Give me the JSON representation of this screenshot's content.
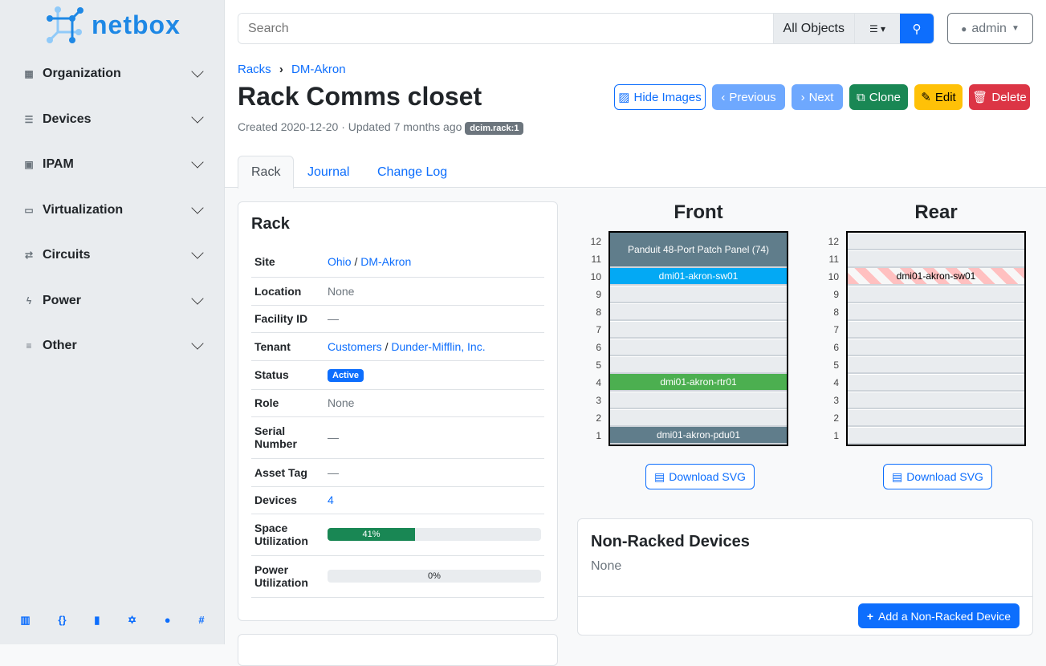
{
  "brand": "netbox",
  "sidebar": {
    "items": [
      {
        "label": "Organization",
        "icon": "domain-icon"
      },
      {
        "label": "Devices",
        "icon": "server-icon"
      },
      {
        "label": "IPAM",
        "icon": "counter-icon"
      },
      {
        "label": "Virtualization",
        "icon": "monitor-icon"
      },
      {
        "label": "Circuits",
        "icon": "transit-icon"
      },
      {
        "label": "Power",
        "icon": "flash-icon"
      },
      {
        "label": "Other",
        "icon": "notes-icon"
      }
    ],
    "footer": [
      {
        "icon": "book-icon",
        "glyph": "▥"
      },
      {
        "icon": "api-icon",
        "glyph": "{}"
      },
      {
        "icon": "docs-icon",
        "glyph": "▮"
      },
      {
        "icon": "graphql-icon",
        "glyph": "✡"
      },
      {
        "icon": "github-icon",
        "glyph": "●"
      },
      {
        "icon": "slack-icon",
        "glyph": "#"
      }
    ]
  },
  "header": {
    "search_placeholder": "Search",
    "scope": "All Objects",
    "user": "admin"
  },
  "breadcrumb": [
    "Racks",
    "DM-Akron"
  ],
  "title": "Rack Comms closet",
  "meta": {
    "text": "Created 2020-12-20 · Updated 7 months ago",
    "badge": "dcim.rack:1"
  },
  "buttons": {
    "hide_images": "Hide Images",
    "previous": "Previous",
    "next": "Next",
    "clone": "Clone",
    "edit": "Edit",
    "delete": "Delete"
  },
  "tabs": [
    "Rack",
    "Journal",
    "Change Log"
  ],
  "rack_card": {
    "title": "Rack",
    "site": [
      "Ohio",
      "DM-Akron"
    ],
    "location": "None",
    "facility": "—",
    "tenant": [
      "Customers",
      "Dunder-Mifflin, Inc."
    ],
    "status": "Active",
    "role": "None",
    "serial": "—",
    "asset": "—",
    "devices": "4",
    "space_util": 41,
    "space_label": "41%",
    "power_util": 0,
    "power_label": "0%",
    "labels": {
      "site": "Site",
      "location": "Location",
      "facility": "Facility ID",
      "tenant": "Tenant",
      "status": "Status",
      "role": "Role",
      "serial": "Serial Number",
      "asset": "Asset Tag",
      "devices": "Devices",
      "space": "Space Utilization",
      "power": "Power Utilization"
    }
  },
  "elevations": {
    "front_title": "Front",
    "rear_title": "Rear",
    "units": [
      12,
      11,
      10,
      9,
      8,
      7,
      6,
      5,
      4,
      3,
      2,
      1
    ],
    "front": [
      {
        "name": "Panduit 48-Port Patch Panel (74)",
        "top": 12,
        "height": 2,
        "color": "#607d8b"
      },
      {
        "name": "dmi01-akron-sw01",
        "top": 10,
        "height": 1,
        "color": "#03a9f4"
      },
      {
        "name": "dmi01-akron-rtr01",
        "top": 4,
        "height": 1,
        "color": "#4caf50"
      },
      {
        "name": "dmi01-akron-pdu01",
        "top": 1,
        "height": 1,
        "color": "#607d8b"
      }
    ],
    "rear": [
      {
        "name": "dmi01-akron-sw01",
        "top": 10,
        "height": 1
      }
    ],
    "download": "Download SVG"
  },
  "nonracked": {
    "title": "Non-Racked Devices",
    "empty": "None",
    "add": "Add a Non-Racked Device"
  }
}
